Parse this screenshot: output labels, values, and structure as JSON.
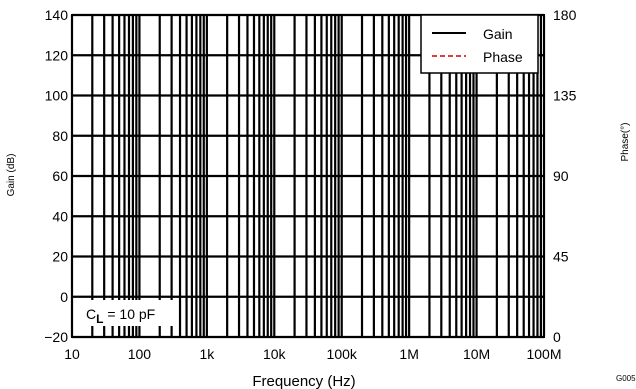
{
  "chart_data": {
    "type": "line",
    "title": "",
    "xlabel": "Frequency (Hz)",
    "ylabel_left": "Gain (dB)",
    "ylabel_right": "Phase(°)",
    "x_scale": "log",
    "xlim": [
      10,
      100000000
    ],
    "ylim_left": [
      -20,
      140
    ],
    "ylim_right": [
      0,
      180
    ],
    "x_ticks": [
      10,
      100,
      1000,
      10000,
      100000,
      1000000,
      10000000,
      100000000
    ],
    "x_tick_labels": [
      "10",
      "100",
      "1k",
      "10k",
      "100k",
      "1M",
      "10M",
      "100M"
    ],
    "y_left_ticks": [
      -20,
      0,
      20,
      40,
      60,
      80,
      100,
      120,
      140
    ],
    "y_left_tick_labels": [
      "−20",
      "0",
      "20",
      "40",
      "60",
      "80",
      "100",
      "120",
      "140"
    ],
    "y_right_ticks": [
      0,
      45,
      90,
      135,
      180
    ],
    "y_right_tick_labels": [
      "0",
      "45",
      "90",
      "135",
      "180"
    ],
    "grid": true,
    "legend_position": "top-right",
    "series": [
      {
        "name": "Gain",
        "axis": "left",
        "color": "#000000",
        "dash": "solid",
        "x": [],
        "y": []
      },
      {
        "name": "Phase",
        "axis": "right",
        "color": "#cc0000",
        "dash": "dashed",
        "x": [],
        "y": []
      }
    ],
    "annotation": {
      "prefix": "C",
      "subscript": "L",
      "suffix": " = 10 pF"
    },
    "figure_code": "G005"
  }
}
